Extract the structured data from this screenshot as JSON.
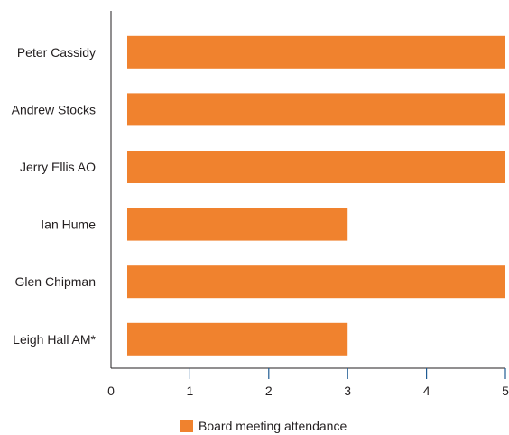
{
  "chart_data": {
    "type": "bar",
    "orientation": "horizontal",
    "categories": [
      "Peter Cassidy",
      "Andrew Stocks",
      "Jerry Ellis AO",
      "Ian Hume",
      "Glen Chipman",
      "Leigh Hall AM*"
    ],
    "series": [
      {
        "name": "Board meeting attendance",
        "values": [
          5,
          5,
          5,
          3,
          5,
          3
        ],
        "color": "#f0822e"
      }
    ],
    "xlim": [
      0,
      5
    ],
    "xticks": [
      "0",
      "1",
      "2",
      "3",
      "4",
      "5"
    ],
    "grid": false,
    "legend_position": "bottom"
  }
}
